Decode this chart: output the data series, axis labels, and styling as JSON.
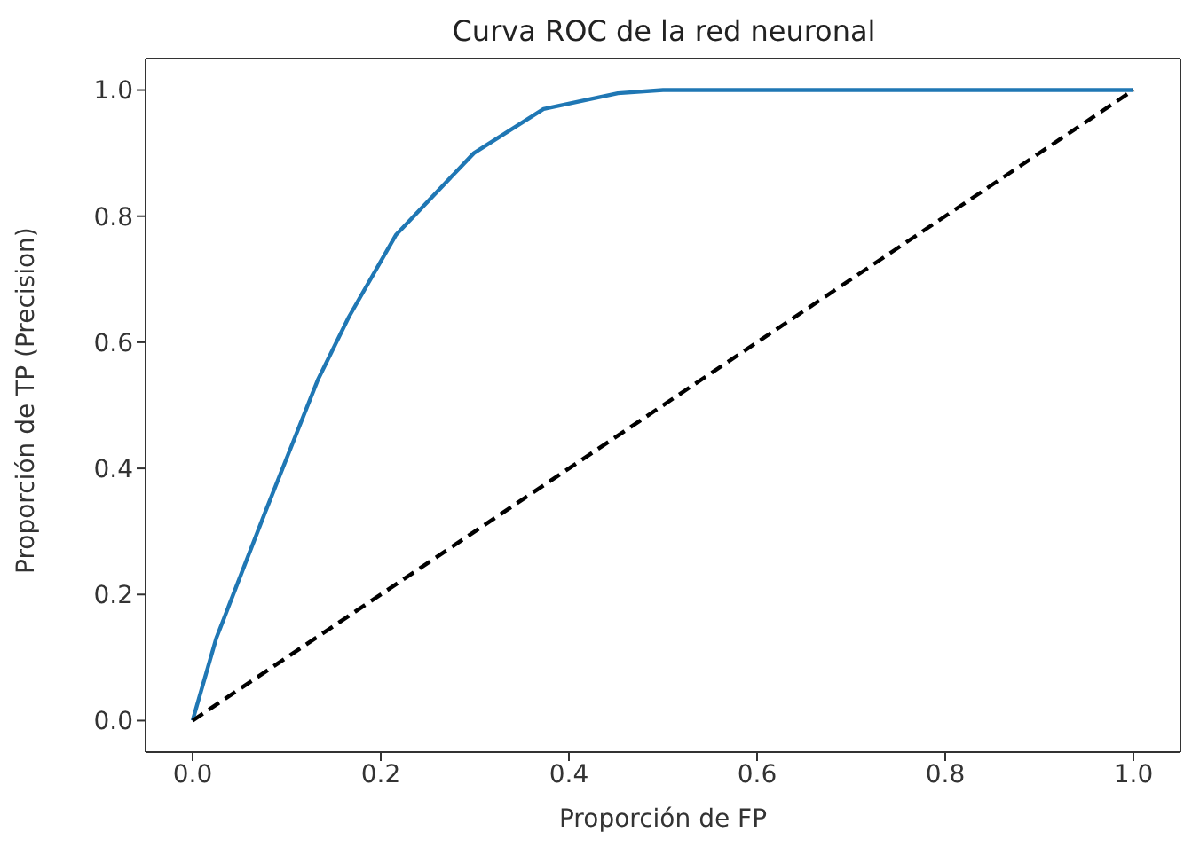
{
  "chart_data": {
    "type": "line",
    "title": "Curva ROC de la red neuronal",
    "xlabel": "Proporción de FP",
    "ylabel": "Proporción de TP (Precision)",
    "xlim": [
      -0.05,
      1.05
    ],
    "ylim": [
      -0.05,
      1.05
    ],
    "xticks": [
      {
        "value": 0,
        "label": "0.0"
      },
      0.2,
      0.4,
      0.6,
      0.8,
      {
        "value": 1,
        "label": "1.0"
      }
    ],
    "yticks": [
      {
        "value": 0,
        "label": "0.0"
      },
      0.2,
      0.4,
      0.6,
      0.8,
      {
        "value": 1,
        "label": "1.0"
      }
    ],
    "grid": false,
    "marker": "none",
    "series": [
      {
        "color": "#1f77b4",
        "line_style": "solid",
        "x": [
          0,
          0.025,
          0.077,
          0.133,
          0.166,
          0.216,
          0.299,
          0.373,
          0.452,
          0.5,
          1.0
        ],
        "values": [
          0,
          0.13,
          0.33,
          0.54,
          0.64,
          0.77,
          0.9,
          0.97,
          0.995,
          1.0,
          1.0
        ]
      },
      {
        "color": "#000000",
        "line_style": "dashed",
        "x": [
          0,
          1
        ],
        "values": [
          0,
          1
        ]
      }
    ]
  }
}
